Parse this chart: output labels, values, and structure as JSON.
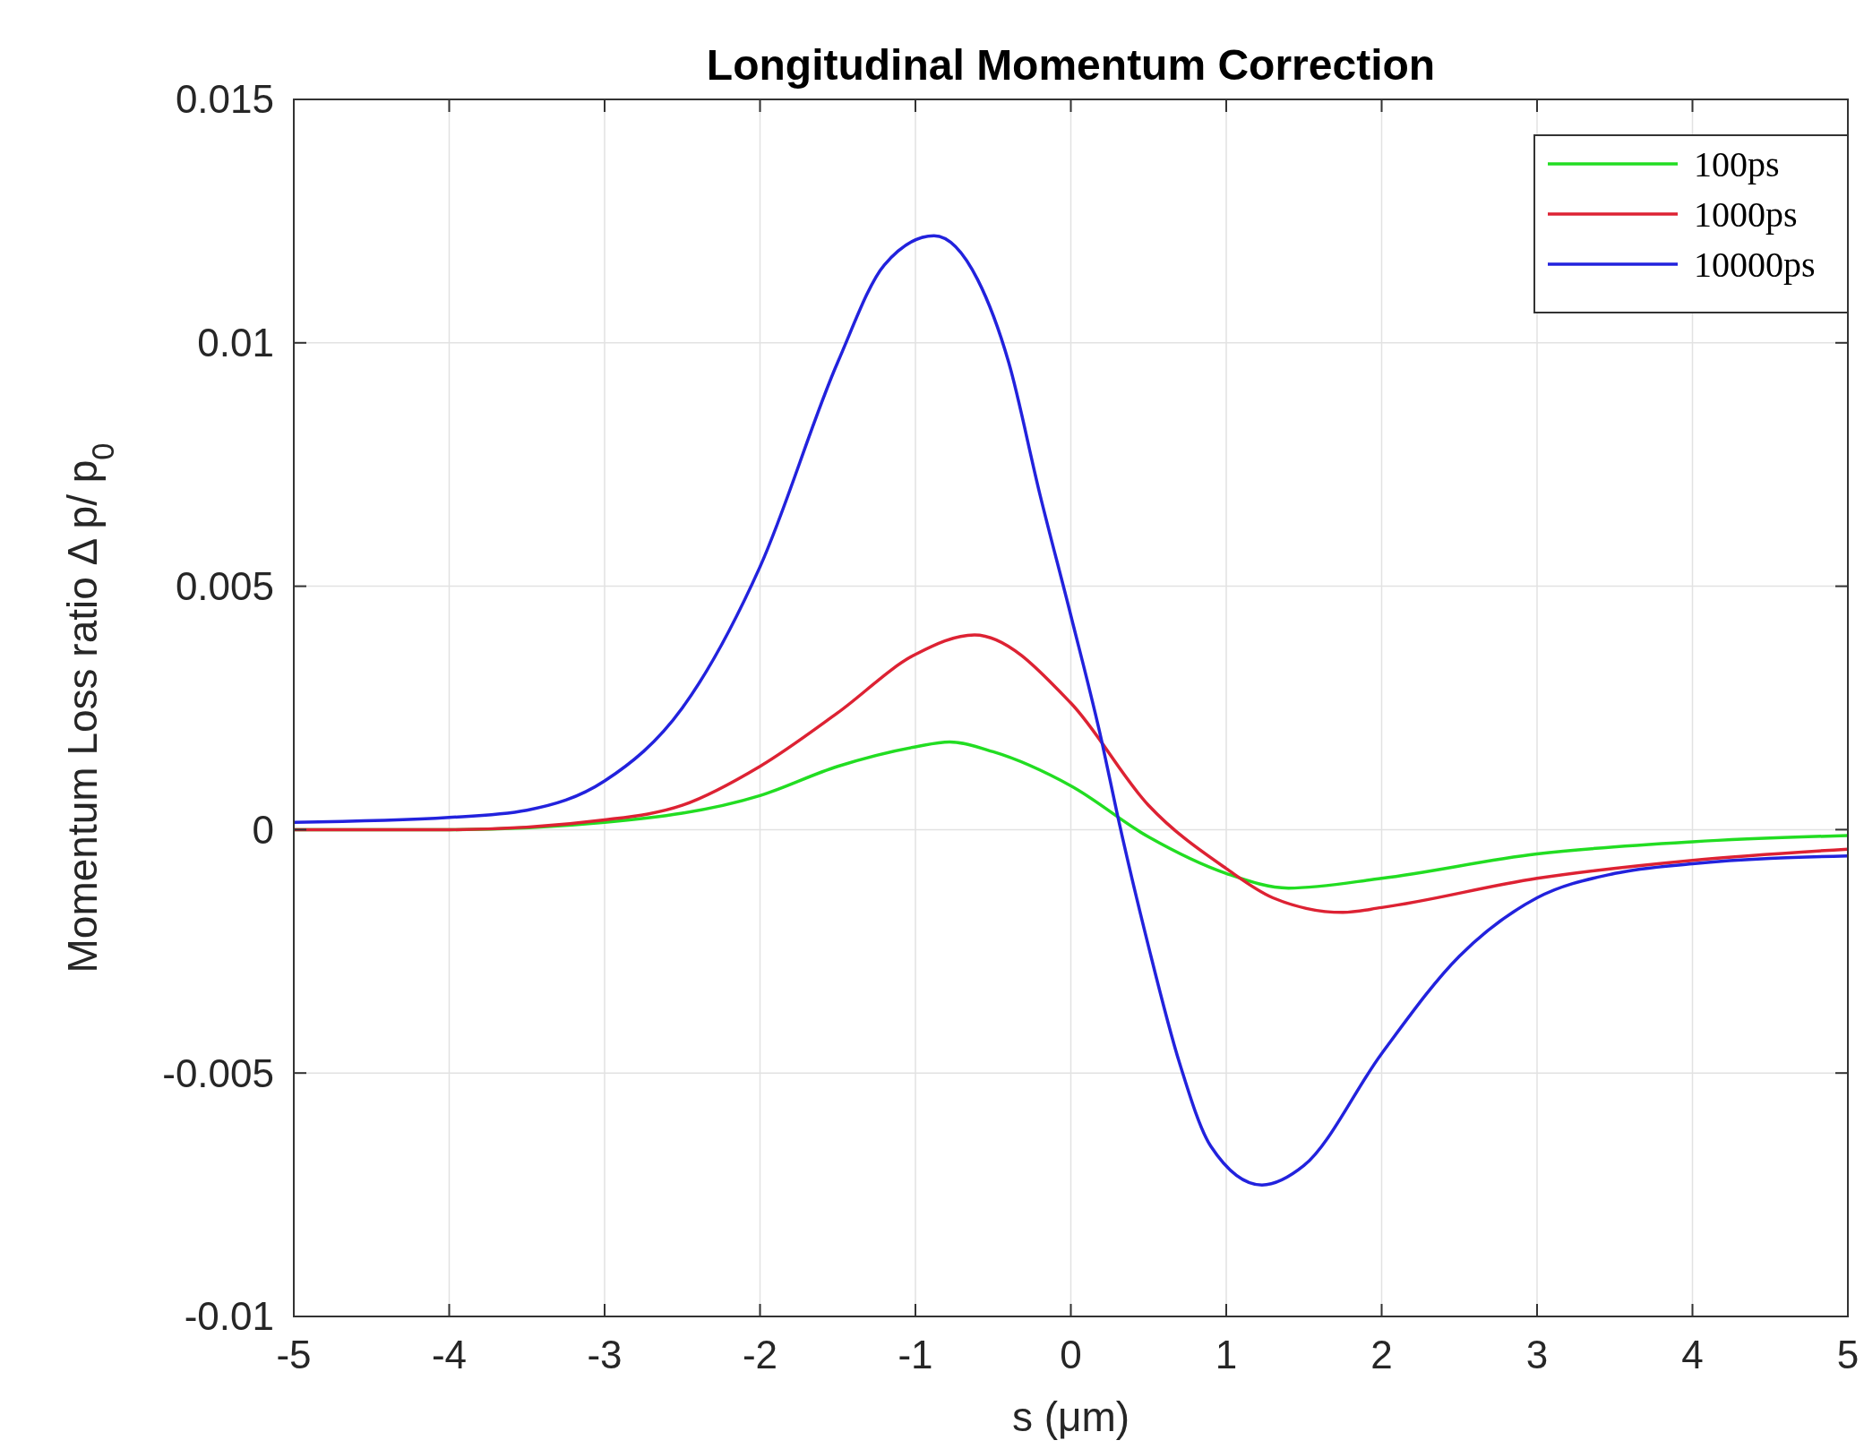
{
  "chart_data": {
    "type": "line",
    "title": "Longitudinal Momentum Correction",
    "xlabel": "s (μm)",
    "ylabel": "Momentum Loss ratio Δ p/ p$_{0}$",
    "xlim": [
      -5,
      5
    ],
    "xticks": [
      -5,
      -4,
      -3,
      -2,
      -1,
      0,
      1,
      2,
      3,
      4,
      5
    ],
    "ylim": [
      -0.01,
      0.015
    ],
    "yticks": [
      -0.01,
      -0.005,
      0,
      0.005,
      0.01,
      0.015
    ],
    "grid": true,
    "legend": "top right",
    "line_style": "solid",
    "marker": "none",
    "series": [
      {
        "name": "100ps",
        "color": "#22dd22",
        "x": [
          -5,
          -4,
          -3,
          -2,
          -1.5,
          -1,
          -0.78,
          -0.5,
          0,
          0.5,
          1,
          1.4,
          2,
          3,
          4,
          5
        ],
        "values": [
          0,
          0,
          0.00015,
          0.0007,
          0.0013,
          0.0017,
          0.0018,
          0.0016,
          0.0009,
          -0.00015,
          -0.0009,
          -0.0012,
          -0.001,
          -0.0005,
          -0.00025,
          -0.00012
        ]
      },
      {
        "name": "1000ps",
        "color": "#dd2233",
        "x": [
          -5,
          -4,
          -3,
          -2.5,
          -2,
          -1.5,
          -1,
          -0.62,
          0,
          0.5,
          1,
          1.3,
          1.75,
          2,
          3,
          4,
          5
        ],
        "values": [
          0,
          0,
          0.0002,
          0.0005,
          0.0013,
          0.0024,
          0.0036,
          0.004,
          0.0026,
          0.0005,
          -0.0008,
          -0.0014,
          -0.0017,
          -0.0016,
          -0.001,
          -0.00063,
          -0.0004
        ]
      },
      {
        "name": "10000ps",
        "color": "#2222dd",
        "x": [
          -5,
          -4,
          -3.5,
          -3,
          -2.5,
          -2,
          -1.5,
          -1.2,
          -0.88,
          -0.6,
          -0.4,
          -0.2,
          0,
          0.2,
          0.3,
          0.5,
          0.7,
          0.9,
          1.23,
          1.5,
          2,
          2.5,
          3,
          3.5,
          4,
          5
        ],
        "values": [
          0.00015,
          0.00025,
          0.0004,
          0.001,
          0.0025,
          0.0054,
          0.0096,
          0.0116,
          0.0122,
          0.0113,
          0.0096,
          0.0069,
          0.0044,
          0.0018,
          0.0003,
          -0.0024,
          -0.0048,
          -0.0065,
          -0.0073,
          -0.0069,
          -0.0046,
          -0.0026,
          -0.0014,
          -0.0009,
          -0.0007,
          -0.00054
        ]
      }
    ]
  }
}
